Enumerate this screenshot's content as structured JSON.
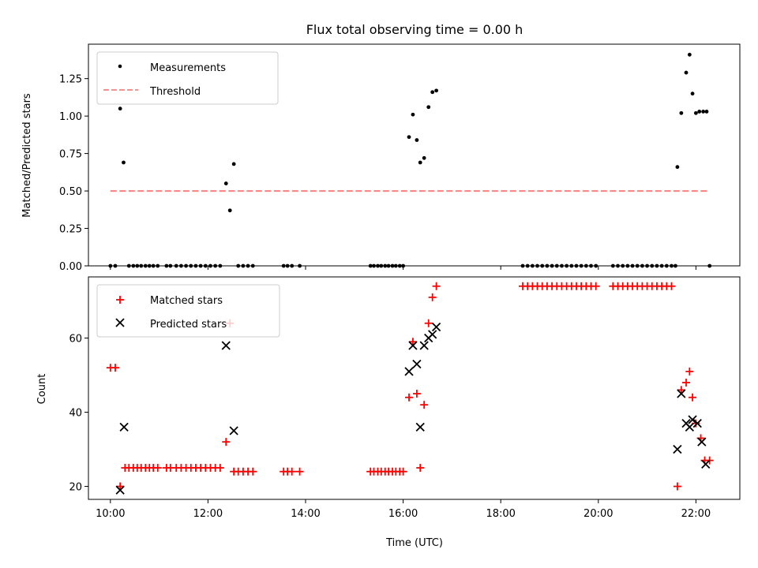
{
  "chart_data": [
    {
      "type": "scatter",
      "title": "Flux total observing time = 0.00 h",
      "xlabel": "",
      "ylabel": "Matched/Predicted stars",
      "xlim": [
        9.55,
        22.9
      ],
      "ylim": [
        0,
        1.48
      ],
      "x_ticks": [
        10,
        12,
        14,
        16,
        18,
        20,
        22
      ],
      "y_ticks": [
        0.0,
        0.25,
        0.5,
        0.75,
        1.0,
        1.25
      ],
      "y_tick_labels": [
        "0.00",
        "0.25",
        "0.50",
        "0.75",
        "1.00",
        "1.25"
      ],
      "legend_position": "top-left",
      "series": [
        {
          "name": "Measurements",
          "marker": "dot",
          "color": "#000000",
          "points": [
            [
              10.0,
              0
            ],
            [
              10.1,
              0
            ],
            [
              10.2,
              1.05
            ],
            [
              10.27,
              0.69
            ],
            [
              10.38,
              0
            ],
            [
              10.47,
              0
            ],
            [
              10.55,
              0
            ],
            [
              10.63,
              0
            ],
            [
              10.72,
              0
            ],
            [
              10.8,
              0
            ],
            [
              10.88,
              0
            ],
            [
              10.97,
              0
            ],
            [
              11.15,
              0
            ],
            [
              11.23,
              0
            ],
            [
              11.35,
              0
            ],
            [
              11.45,
              0
            ],
            [
              11.55,
              0
            ],
            [
              11.65,
              0
            ],
            [
              11.75,
              0
            ],
            [
              11.85,
              0
            ],
            [
              11.95,
              0
            ],
            [
              12.05,
              0
            ],
            [
              12.15,
              0
            ],
            [
              12.25,
              0
            ],
            [
              12.37,
              0.55
            ],
            [
              12.45,
              0.37
            ],
            [
              12.53,
              0.68
            ],
            [
              12.62,
              0
            ],
            [
              12.72,
              0
            ],
            [
              12.82,
              0
            ],
            [
              12.92,
              0
            ],
            [
              13.55,
              0
            ],
            [
              13.63,
              0
            ],
            [
              13.72,
              0
            ],
            [
              13.88,
              0
            ],
            [
              15.33,
              0
            ],
            [
              15.4,
              0
            ],
            [
              15.48,
              0
            ],
            [
              15.55,
              0
            ],
            [
              15.63,
              0
            ],
            [
              15.7,
              0
            ],
            [
              15.78,
              0
            ],
            [
              15.85,
              0
            ],
            [
              15.93,
              0
            ],
            [
              16.0,
              0
            ],
            [
              16.12,
              0.86
            ],
            [
              16.2,
              1.01
            ],
            [
              16.28,
              0.84
            ],
            [
              16.35,
              0.69
            ],
            [
              16.43,
              0.72
            ],
            [
              16.52,
              1.06
            ],
            [
              16.6,
              1.16
            ],
            [
              16.68,
              1.17
            ],
            [
              18.45,
              0
            ],
            [
              18.55,
              0
            ],
            [
              18.65,
              0
            ],
            [
              18.75,
              0
            ],
            [
              18.85,
              0
            ],
            [
              18.95,
              0
            ],
            [
              19.05,
              0
            ],
            [
              19.15,
              0
            ],
            [
              19.25,
              0
            ],
            [
              19.35,
              0
            ],
            [
              19.45,
              0
            ],
            [
              19.55,
              0
            ],
            [
              19.65,
              0
            ],
            [
              19.75,
              0
            ],
            [
              19.85,
              0
            ],
            [
              19.95,
              0
            ],
            [
              20.3,
              0
            ],
            [
              20.4,
              0
            ],
            [
              20.5,
              0
            ],
            [
              20.6,
              0
            ],
            [
              20.7,
              0
            ],
            [
              20.8,
              0
            ],
            [
              20.9,
              0
            ],
            [
              21.0,
              0
            ],
            [
              21.1,
              0
            ],
            [
              21.2,
              0
            ],
            [
              21.3,
              0
            ],
            [
              21.4,
              0
            ],
            [
              21.5,
              0
            ],
            [
              21.58,
              0
            ],
            [
              21.62,
              0.66
            ],
            [
              21.7,
              1.02
            ],
            [
              21.8,
              1.29
            ],
            [
              21.87,
              1.41
            ],
            [
              21.93,
              1.15
            ],
            [
              22.0,
              1.02
            ],
            [
              22.07,
              1.03
            ],
            [
              22.15,
              1.03
            ],
            [
              22.22,
              1.03
            ],
            [
              22.28,
              0
            ]
          ]
        },
        {
          "name": "Threshold",
          "marker": "dashed-line",
          "color": "#ff7f7f",
          "points": [
            [
              10.0,
              0.5
            ],
            [
              22.28,
              0.5
            ]
          ]
        }
      ]
    },
    {
      "type": "scatter",
      "title": "",
      "xlabel": "Time (UTC)",
      "ylabel": "Count",
      "xlim": [
        9.55,
        22.9
      ],
      "ylim": [
        16.5,
        76.5
      ],
      "x_ticks": [
        10,
        12,
        14,
        16,
        18,
        20,
        22
      ],
      "x_tick_labels": [
        "10:00",
        "12:00",
        "14:00",
        "16:00",
        "18:00",
        "20:00",
        "22:00"
      ],
      "y_ticks": [
        20,
        40,
        60
      ],
      "y_tick_labels": [
        "20",
        "40",
        "60"
      ],
      "legend_position": "top-left",
      "series": [
        {
          "name": "Matched stars",
          "marker": "plus",
          "color": "#ff0000",
          "points": [
            [
              10.0,
              52
            ],
            [
              10.1,
              52
            ],
            [
              10.2,
              20
            ],
            [
              10.3,
              25
            ],
            [
              10.38,
              25
            ],
            [
              10.47,
              25
            ],
            [
              10.55,
              25
            ],
            [
              10.63,
              25
            ],
            [
              10.72,
              25
            ],
            [
              10.8,
              25
            ],
            [
              10.88,
              25
            ],
            [
              10.97,
              25
            ],
            [
              11.15,
              25
            ],
            [
              11.23,
              25
            ],
            [
              11.35,
              25
            ],
            [
              11.45,
              25
            ],
            [
              11.55,
              25
            ],
            [
              11.65,
              25
            ],
            [
              11.75,
              25
            ],
            [
              11.85,
              25
            ],
            [
              11.95,
              25
            ],
            [
              12.05,
              25
            ],
            [
              12.15,
              25
            ],
            [
              12.25,
              25
            ],
            [
              12.37,
              32
            ],
            [
              12.45,
              64
            ],
            [
              12.53,
              24
            ],
            [
              12.62,
              24
            ],
            [
              12.72,
              24
            ],
            [
              12.82,
              24
            ],
            [
              12.92,
              24
            ],
            [
              13.55,
              24
            ],
            [
              13.63,
              24
            ],
            [
              13.72,
              24
            ],
            [
              13.88,
              24
            ],
            [
              15.33,
              24
            ],
            [
              15.4,
              24
            ],
            [
              15.48,
              24
            ],
            [
              15.55,
              24
            ],
            [
              15.63,
              24
            ],
            [
              15.7,
              24
            ],
            [
              15.78,
              24
            ],
            [
              15.85,
              24
            ],
            [
              15.93,
              24
            ],
            [
              16.0,
              24
            ],
            [
              16.12,
              44
            ],
            [
              16.2,
              59
            ],
            [
              16.28,
              45
            ],
            [
              16.35,
              25
            ],
            [
              16.43,
              42
            ],
            [
              16.52,
              64
            ],
            [
              16.6,
              71
            ],
            [
              16.68,
              74
            ],
            [
              18.45,
              74
            ],
            [
              18.55,
              74
            ],
            [
              18.65,
              74
            ],
            [
              18.75,
              74
            ],
            [
              18.85,
              74
            ],
            [
              18.95,
              74
            ],
            [
              19.05,
              74
            ],
            [
              19.15,
              74
            ],
            [
              19.25,
              74
            ],
            [
              19.35,
              74
            ],
            [
              19.45,
              74
            ],
            [
              19.55,
              74
            ],
            [
              19.65,
              74
            ],
            [
              19.75,
              74
            ],
            [
              19.85,
              74
            ],
            [
              19.95,
              74
            ],
            [
              20.3,
              74
            ],
            [
              20.4,
              74
            ],
            [
              20.5,
              74
            ],
            [
              20.6,
              74
            ],
            [
              20.7,
              74
            ],
            [
              20.8,
              74
            ],
            [
              20.9,
              74
            ],
            [
              21.0,
              74
            ],
            [
              21.1,
              74
            ],
            [
              21.2,
              74
            ],
            [
              21.3,
              74
            ],
            [
              21.4,
              74
            ],
            [
              21.5,
              74
            ],
            [
              21.62,
              20
            ],
            [
              21.7,
              46
            ],
            [
              21.8,
              48
            ],
            [
              21.87,
              51
            ],
            [
              21.93,
              44
            ],
            [
              22.0,
              37
            ],
            [
              22.1,
              33
            ],
            [
              22.18,
              27
            ],
            [
              22.28,
              27
            ]
          ]
        },
        {
          "name": "Predicted stars",
          "marker": "x",
          "color": "#000000",
          "points": [
            [
              10.2,
              19
            ],
            [
              10.28,
              36
            ],
            [
              12.37,
              58
            ],
            [
              12.53,
              35
            ],
            [
              16.12,
              51
            ],
            [
              16.2,
              58
            ],
            [
              16.28,
              53
            ],
            [
              16.35,
              36
            ],
            [
              16.43,
              58
            ],
            [
              16.52,
              60
            ],
            [
              16.6,
              61
            ],
            [
              16.68,
              63
            ],
            [
              21.62,
              30
            ],
            [
              21.7,
              45
            ],
            [
              21.8,
              37
            ],
            [
              21.87,
              36
            ],
            [
              21.93,
              38
            ],
            [
              22.03,
              37
            ],
            [
              22.12,
              32
            ],
            [
              22.2,
              26
            ]
          ]
        }
      ]
    }
  ]
}
